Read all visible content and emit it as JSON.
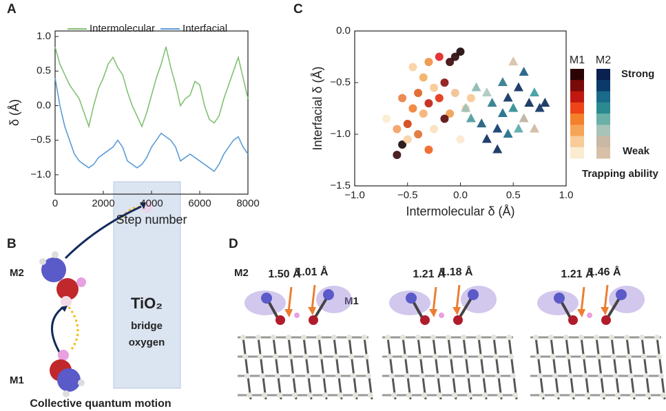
{
  "chart_data": [
    {
      "type": "line",
      "panel": "A",
      "xlabel": "Step number",
      "ylabel": "δ (Å)",
      "x": [
        0,
        200,
        400,
        600,
        800,
        1000,
        1200,
        1400,
        1600,
        1800,
        2000,
        2200,
        2400,
        2600,
        2800,
        3000,
        3200,
        3400,
        3600,
        3800,
        4000,
        4200,
        4400,
        4600,
        4800,
        5000,
        5200,
        5400,
        5600,
        5800,
        6000,
        6200,
        6400,
        6600,
        6800,
        7000,
        7200,
        7400,
        7600,
        7800,
        8000
      ],
      "series": [
        {
          "name": "Intermolecular",
          "color": "#82c072",
          "values": [
            0.85,
            0.6,
            0.45,
            0.3,
            0.2,
            0.1,
            -0.1,
            -0.3,
            0.0,
            0.25,
            0.4,
            0.6,
            0.7,
            0.55,
            0.45,
            0.2,
            0.0,
            -0.15,
            -0.3,
            -0.1,
            0.15,
            0.4,
            0.6,
            0.85,
            0.55,
            0.3,
            0.0,
            0.1,
            0.15,
            0.35,
            0.3,
            0.0,
            -0.2,
            -0.25,
            -0.15,
            0.1,
            0.3,
            0.5,
            0.7,
            0.4,
            0.1
          ]
        },
        {
          "name": "Interfacial",
          "color": "#5b9bd5",
          "values": [
            0.4,
            0.0,
            -0.3,
            -0.5,
            -0.7,
            -0.8,
            -0.85,
            -0.9,
            -0.85,
            -0.75,
            -0.7,
            -0.65,
            -0.6,
            -0.5,
            -0.6,
            -0.8,
            -0.85,
            -0.9,
            -0.85,
            -0.75,
            -0.6,
            -0.5,
            -0.4,
            -0.45,
            -0.5,
            -0.6,
            -0.8,
            -0.75,
            -0.7,
            -0.75,
            -0.8,
            -0.85,
            -0.9,
            -0.95,
            -0.85,
            -0.7,
            -0.6,
            -0.5,
            -0.45,
            -0.6,
            -0.7
          ]
        }
      ],
      "xlim": [
        0,
        8000
      ],
      "xticks": [
        0,
        2000,
        4000,
        6000,
        8000
      ],
      "ylim": [
        -1.28,
        1.08
      ],
      "yticks": [
        {
          "value": 1.0,
          "label": "1.0"
        },
        {
          "value": 0.5,
          "label": "0.5"
        },
        {
          "value": 0,
          "label": "0.0"
        },
        {
          "value": -0.5,
          "label": "−0.5"
        },
        {
          "value": -1.0,
          "label": "−1.0"
        }
      ],
      "legend": "top"
    },
    {
      "type": "scatter",
      "panel": "C",
      "xlabel": "Intermolecular δ (Å)",
      "ylabel": "Interfacial δ (Å)",
      "series": [
        {
          "name": "M1",
          "marker": "circle",
          "x": [
            -0.6,
            -0.55,
            -0.5,
            -0.45,
            -0.4,
            -0.35,
            -0.3,
            -0.25,
            -0.2,
            -0.15,
            -0.1,
            -0.05,
            0.0,
            -0.2,
            -0.3,
            -0.1,
            -0.5,
            -0.6,
            -0.4,
            -0.05,
            0.05,
            -0.25,
            -0.7,
            -0.35,
            -0.15,
            0.1,
            -0.45,
            -0.55,
            -0.3,
            0.0
          ],
          "values": [
            -1.2,
            -1.1,
            -0.9,
            -0.75,
            -0.6,
            -0.8,
            -0.7,
            -0.55,
            -0.65,
            -0.5,
            -0.3,
            -0.25,
            -0.2,
            -0.25,
            -0.3,
            -0.8,
            -1.05,
            -0.95,
            -1.0,
            -0.6,
            -0.75,
            -0.95,
            -0.85,
            -0.45,
            -0.85,
            -0.65,
            -0.35,
            -0.65,
            -1.15,
            -1.05
          ],
          "colors": [
            "#3a0a0a",
            "#1a0505",
            "#d04010",
            "#f08030",
            "#e06020",
            "#f4b070",
            "#c02010",
            "#f8c890",
            "#e03010",
            "#8a1010",
            "#3a0505",
            "#2a0505",
            "#1a0303",
            "#e02020",
            "#f09040",
            "#f0a050",
            "#f8d0a0",
            "#f4a060",
            "#e07030",
            "#f0c090",
            "#f8d8b0",
            "#fbe0c0",
            "#fcecd0",
            "#f0b060",
            "#5a0808",
            "#f8c890",
            "#f8d0a0",
            "#e88040",
            "#f06020",
            "#fce8d0"
          ]
        },
        {
          "name": "M2",
          "marker": "triangle",
          "x": [
            0.05,
            0.1,
            0.2,
            0.25,
            0.3,
            0.35,
            0.4,
            0.45,
            0.5,
            0.55,
            0.6,
            0.65,
            0.7,
            0.75,
            0.8,
            0.6,
            0.5,
            0.15,
            0.35,
            0.45,
            0.55,
            0.25,
            0.7,
            0.4
          ],
          "values": [
            -0.75,
            -0.85,
            -0.9,
            -1.05,
            -0.7,
            -0.95,
            -0.8,
            -0.65,
            -0.75,
            -0.55,
            -0.85,
            -0.7,
            -0.6,
            -0.75,
            -0.7,
            -0.4,
            -0.3,
            -0.55,
            -1.15,
            -1.0,
            -0.95,
            -0.6,
            -0.95,
            -0.5
          ],
          "colors": [
            "#9ac0b8",
            "#4a9a9a",
            "#1a5a7a",
            "#0a2a5a",
            "#2a7a8a",
            "#0a3a6a",
            "#1a6a8a",
            "#0a3060",
            "#2a8a90",
            "#0a2a5a",
            "#c0b0a0",
            "#0a2a5a",
            "#3a9a9a",
            "#0a3060",
            "#0a2a5a",
            "#1a5a80",
            "#d8c0a8",
            "#8ab8b0",
            "#0a2a5a",
            "#1a6a8a",
            "#5aa8a8",
            "#a8c8c0",
            "#d0b8a0",
            "#2a7a8a"
          ]
        }
      ],
      "xlim": [
        -1.0,
        1.0
      ],
      "xticks": [
        {
          "value": -1.0,
          "label": "−1.0"
        },
        {
          "value": -0.5,
          "label": "−0.5"
        },
        {
          "value": 0,
          "label": "0.0"
        },
        {
          "value": 0.5,
          "label": "0.5"
        },
        {
          "value": 1.0,
          "label": "1.0"
        }
      ],
      "ylim": [
        -1.5,
        0
      ],
      "yticks": [
        {
          "value": 0,
          "label": "0.0"
        },
        {
          "value": -0.5,
          "label": "−0.5"
        },
        {
          "value": -1.0,
          "label": "−1.0"
        },
        {
          "value": -1.5,
          "label": "−1.5"
        }
      ],
      "colorbar": {
        "M1_label": "M1",
        "M2_label": "M2",
        "M1_colors": [
          "#2a0303",
          "#7a0a0a",
          "#c01810",
          "#ee4418",
          "#f4802c",
          "#f6a458",
          "#f8cc98",
          "#faecd0"
        ],
        "M2_colors": [
          "#0a2050",
          "#0a3a6a",
          "#1a6a8a",
          "#2a8a90",
          "#6ab0a8",
          "#a8c4b8",
          "#c8b8a4",
          "#d8c0a8"
        ],
        "top_label": "Strong",
        "bottom_label": "Weak",
        "title": "Trapping ability"
      }
    }
  ],
  "panel_b": {
    "label": "B",
    "m2": "M2",
    "m1": "M1",
    "box_title": "TiO₂",
    "box_line1": "bridge",
    "box_line2": "oxygen",
    "caption": "Collective quantum motion"
  },
  "panel_d": {
    "label": "D",
    "m2": "M2",
    "m1": "M1",
    "distances": [
      [
        "1.50 Å",
        "1.01 Å"
      ],
      [
        "1.21 Å",
        "1.18 Å"
      ],
      [
        "1.21 Å",
        "1.46 Å"
      ]
    ]
  }
}
